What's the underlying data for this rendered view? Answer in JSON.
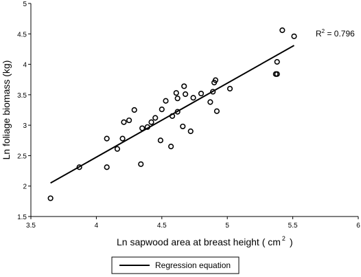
{
  "chart_data": {
    "type": "scatter",
    "title": "",
    "xlabel": "Ln sapwood area at breast height (  cm",
    "xlabel_sup": "2",
    "xlabel_end": ")",
    "ylabel": "Ln foliage biomass (kg)",
    "xlim": [
      3.5,
      6
    ],
    "ylim": [
      1.5,
      5
    ],
    "x_ticks": [
      "3.5",
      "4",
      "4.5",
      "5",
      "5.5",
      "6"
    ],
    "y_ticks": [
      "1.5",
      "2",
      "2.5",
      "3",
      "3.5",
      "4",
      "4.5",
      "5"
    ],
    "grid": false,
    "legend_position": "bottom",
    "annotation": {
      "prefix": "R",
      "sup": "2",
      "suffix": " = 0.796"
    },
    "series": [
      {
        "name": "",
        "type": "scatter",
        "marker": "open-circle",
        "x": [
          3.65,
          3.87,
          4.08,
          4.08,
          4.16,
          4.2,
          4.21,
          4.25,
          4.29,
          4.34,
          4.35,
          4.39,
          4.42,
          4.45,
          4.49,
          4.5,
          4.53,
          4.57,
          4.58,
          4.61,
          4.62,
          4.62,
          4.66,
          4.67,
          4.68,
          4.72,
          4.74,
          4.8,
          4.87,
          4.89,
          4.9,
          4.91,
          4.92,
          5.02,
          5.37,
          5.38,
          5.38,
          5.42,
          5.51
        ],
        "y": [
          1.8,
          2.31,
          2.78,
          2.31,
          2.61,
          2.78,
          3.05,
          3.08,
          3.25,
          2.36,
          2.95,
          2.97,
          3.05,
          3.12,
          2.75,
          3.26,
          3.4,
          2.65,
          3.15,
          3.53,
          3.22,
          3.44,
          2.98,
          3.64,
          3.51,
          2.9,
          3.45,
          3.52,
          3.38,
          3.55,
          3.7,
          3.74,
          3.23,
          3.6,
          3.84,
          3.84,
          4.04,
          4.56,
          4.46
        ]
      },
      {
        "name": "Regression equation",
        "type": "line",
        "x": [
          3.65,
          5.51
        ],
        "y": [
          2.05,
          4.31
        ]
      }
    ]
  },
  "colors": {
    "ink": "#000000",
    "background": "#ffffff"
  }
}
